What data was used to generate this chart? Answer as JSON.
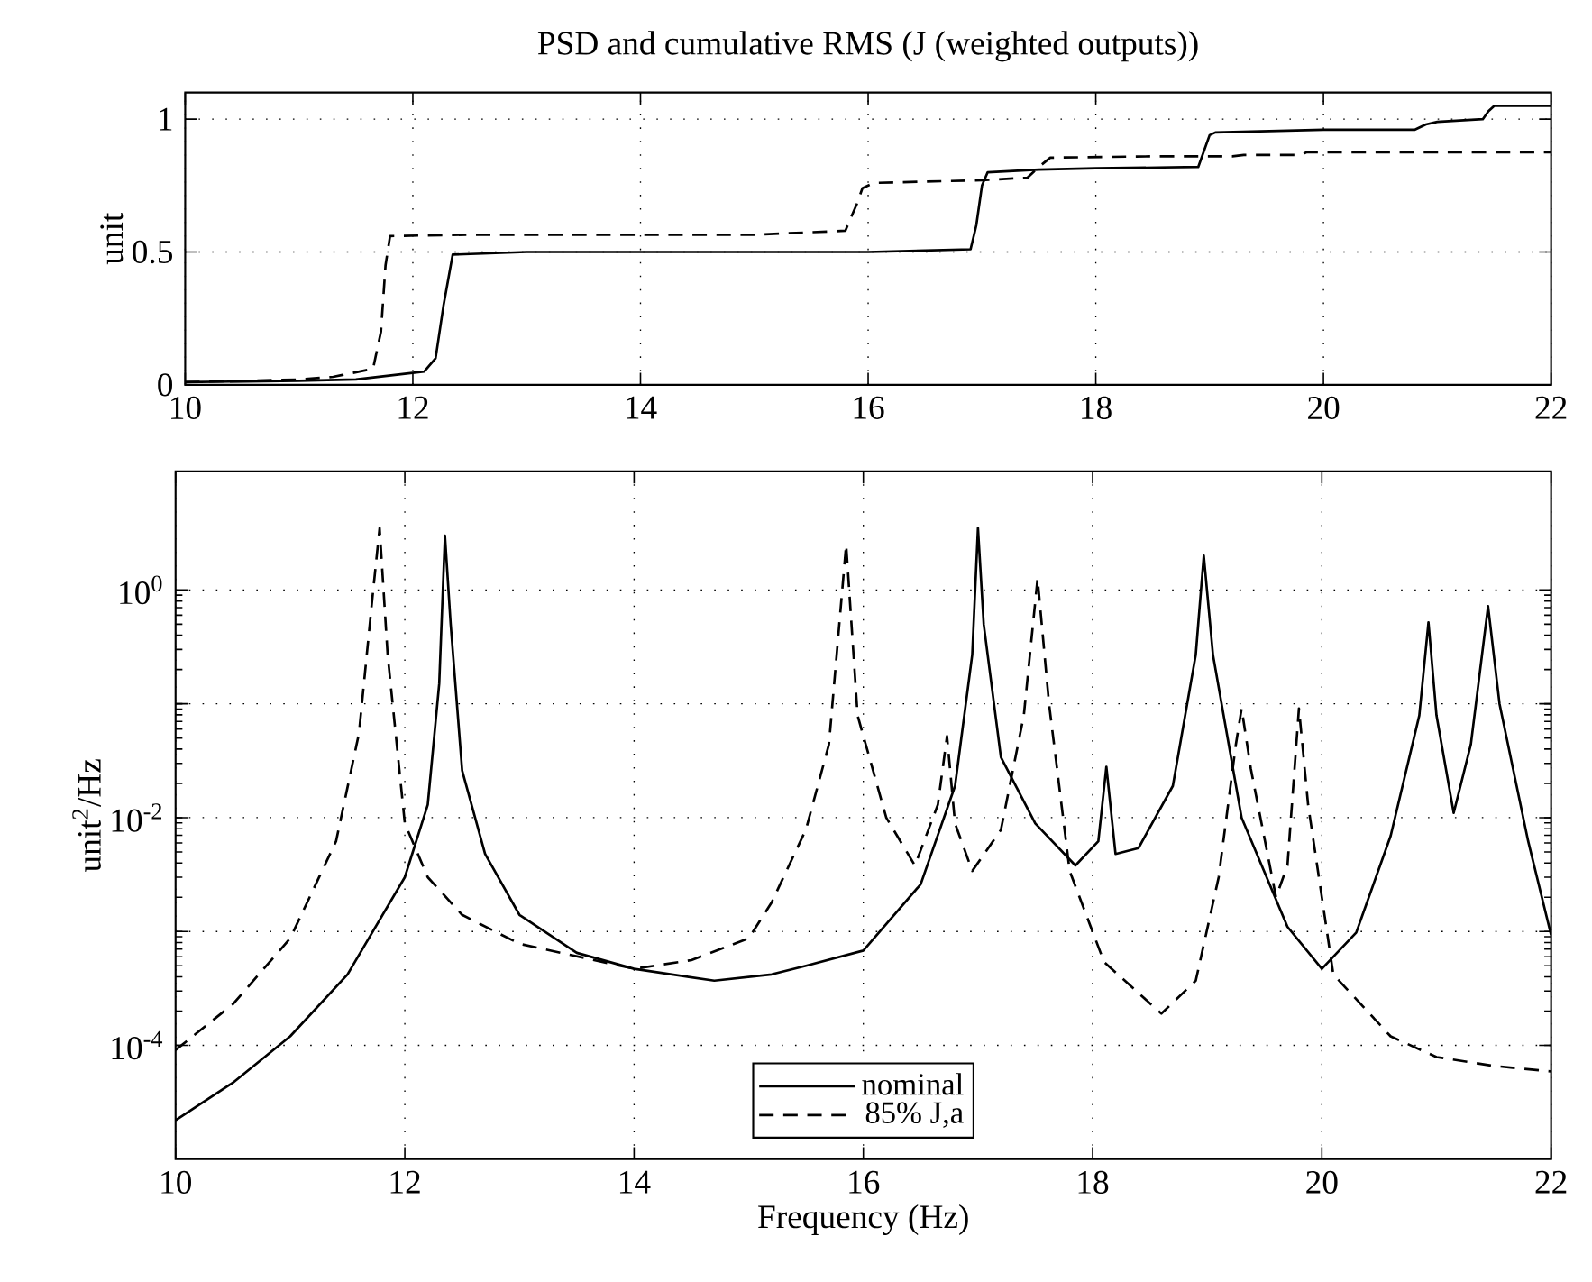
{
  "chart_data": [
    {
      "type": "line",
      "title": "PSD and cumulative RMS (J (weighted outputs))",
      "ylabel": "unit",
      "xlim": [
        10,
        22
      ],
      "ylim": [
        0,
        1.1
      ],
      "xticks": [
        10,
        12,
        14,
        16,
        18,
        20,
        22
      ],
      "yticks": [
        0,
        0.5,
        1
      ],
      "grid": true,
      "series": [
        {
          "color": "#000000",
          "line_style": "solid",
          "x": [
            10,
            11,
            11.5,
            12.1,
            12.2,
            12.27,
            12.35,
            13,
            14,
            15,
            16,
            16.9,
            16.95,
            17.0,
            17.05,
            17.5,
            18,
            18.9,
            18.95,
            19.0,
            19.05,
            20,
            20.8,
            20.9,
            21.0,
            21.4,
            21.45,
            21.5,
            22
          ],
          "values": [
            0.01,
            0.015,
            0.02,
            0.05,
            0.1,
            0.3,
            0.49,
            0.5,
            0.5,
            0.5,
            0.5,
            0.51,
            0.6,
            0.75,
            0.8,
            0.81,
            0.815,
            0.82,
            0.88,
            0.94,
            0.95,
            0.96,
            0.96,
            0.98,
            0.99,
            1.0,
            1.03,
            1.05,
            1.05
          ]
        },
        {
          "color": "#000000",
          "line_style": "dashed",
          "x": [
            10,
            11,
            11.3,
            11.65,
            11.72,
            11.76,
            11.8,
            12.5,
            14,
            15,
            15.8,
            15.9,
            15.95,
            16.05,
            17,
            17.4,
            17.5,
            17.6,
            18.5,
            19.2,
            19.3,
            19.8,
            19.85,
            22
          ],
          "values": [
            0.01,
            0.02,
            0.03,
            0.06,
            0.2,
            0.45,
            0.56,
            0.565,
            0.565,
            0.565,
            0.58,
            0.68,
            0.74,
            0.76,
            0.77,
            0.78,
            0.82,
            0.855,
            0.86,
            0.86,
            0.865,
            0.865,
            0.875,
            0.875
          ]
        }
      ]
    },
    {
      "type": "line",
      "xlabel": "Frequency (Hz)",
      "ylabel": "unit$^{2}$/Hz",
      "log": "y",
      "xlim": [
        10,
        22
      ],
      "ylim": [
        1e-05,
        11
      ],
      "xticks": [
        10,
        12,
        14,
        16,
        18,
        20,
        22
      ],
      "yticks": [
        {
          "value": 0.0001,
          "label": "10$^{-4}$"
        },
        {
          "value": 0.001,
          "label": null
        },
        {
          "value": 0.01,
          "label": "10$^{-2}$"
        },
        {
          "value": 0.1,
          "label": null
        },
        {
          "value": 1,
          "label": "10$^{0}$"
        }
      ],
      "grid": true,
      "legend": "bottom",
      "series": [
        {
          "name": "nominal",
          "color": "#000000",
          "line_style": "solid",
          "x": [
            10,
            10.5,
            11,
            11.5,
            12.0,
            12.2,
            12.3,
            12.35,
            12.4,
            12.5,
            12.7,
            13.0,
            13.5,
            14.0,
            14.7,
            15.2,
            15.5,
            16.0,
            16.5,
            16.8,
            16.95,
            17.0,
            17.05,
            17.2,
            17.5,
            17.85,
            18.05,
            18.12,
            18.2,
            18.4,
            18.7,
            18.9,
            18.97,
            19.05,
            19.3,
            19.7,
            20.0,
            20.3,
            20.6,
            20.85,
            20.93,
            21.0,
            21.15,
            21.3,
            21.45,
            21.55,
            21.8,
            22
          ],
          "values": [
            2.2e-05,
            4.7e-05,
            0.00012,
            0.00042,
            0.003,
            0.013,
            0.15,
            3.0,
            0.5,
            0.026,
            0.0048,
            0.0014,
            0.00065,
            0.00047,
            0.00037,
            0.00042,
            0.0005,
            0.00068,
            0.0026,
            0.019,
            0.27,
            3.5,
            0.5,
            0.034,
            0.0089,
            0.0038,
            0.0062,
            0.028,
            0.0048,
            0.0054,
            0.019,
            0.27,
            2.0,
            0.27,
            0.01,
            0.0011,
            0.00047,
            0.00098,
            0.0069,
            0.079,
            0.52,
            0.079,
            0.011,
            0.044,
            0.72,
            0.1,
            0.0062,
            0.00093
          ]
        },
        {
          "name": "85% J,a",
          "color": "#000000",
          "line_style": "dashed",
          "x": [
            10,
            10.5,
            11,
            11.4,
            11.6,
            11.72,
            11.78,
            11.85,
            12.0,
            12.2,
            12.5,
            13.0,
            14.0,
            14.5,
            15.0,
            15.2,
            15.5,
            15.7,
            15.85,
            15.95,
            16.2,
            16.45,
            16.65,
            16.73,
            16.8,
            16.95,
            17.2,
            17.4,
            17.52,
            17.62,
            17.8,
            18.1,
            18.6,
            18.9,
            19.1,
            19.25,
            19.3,
            19.38,
            19.6,
            19.7,
            19.8,
            19.88,
            20.1,
            20.6,
            21.0,
            21.5,
            22
          ],
          "values": [
            9.1e-05,
            0.00023,
            0.00087,
            0.0062,
            0.055,
            0.91,
            3.5,
            0.27,
            0.0089,
            0.003,
            0.0014,
            0.00078,
            0.00047,
            0.00056,
            0.00087,
            0.0018,
            0.0079,
            0.044,
            2.5,
            0.079,
            0.01,
            0.0038,
            0.013,
            0.052,
            0.0089,
            0.0034,
            0.0078,
            0.079,
            1.26,
            0.1,
            0.0034,
            0.00054,
            0.00019,
            0.00037,
            0.003,
            0.044,
            0.091,
            0.027,
            0.002,
            0.0038,
            0.091,
            0.013,
            0.00042,
            0.00012,
            7.9e-05,
            6.6e-05,
            5.9e-05
          ]
        }
      ]
    }
  ]
}
